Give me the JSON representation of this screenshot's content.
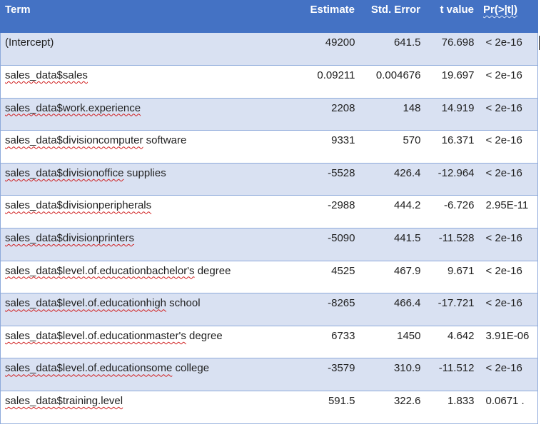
{
  "header": {
    "term": "Term",
    "estimate": "Estimate",
    "std_error": "Std. Error",
    "t_value": "t value",
    "p_value": "Pr(>|t|)"
  },
  "rows": [
    {
      "prefix": "(Intercept)",
      "rest": "",
      "estimate": "49200",
      "std_error": "641.5",
      "t_value": "76.698",
      "p_value": "< 2e-16"
    },
    {
      "prefix": "sales_data$sales",
      "rest": "",
      "estimate": "0.09211",
      "std_error": "0.004676",
      "t_value": "19.697",
      "p_value": "< 2e-16"
    },
    {
      "prefix": "sales_data$work.experience",
      "rest": "",
      "estimate": "2208",
      "std_error": "148",
      "t_value": "14.919",
      "p_value": "< 2e-16"
    },
    {
      "prefix": "sales_data$divisioncomputer",
      "rest": " software",
      "estimate": "9331",
      "std_error": "570",
      "t_value": "16.371",
      "p_value": "< 2e-16"
    },
    {
      "prefix": "sales_data$divisionoffice",
      "rest": " supplies",
      "estimate": "-5528",
      "std_error": "426.4",
      "t_value": "-12.964",
      "p_value": "< 2e-16"
    },
    {
      "prefix": "sales_data$divisionperipherals",
      "rest": "",
      "estimate": "-2988",
      "std_error": "444.2",
      "t_value": "-6.726",
      "p_value": "2.95E-11"
    },
    {
      "prefix": "sales_data$divisionprinters",
      "rest": "",
      "estimate": "-5090",
      "std_error": "441.5",
      "t_value": "-11.528",
      "p_value": "< 2e-16"
    },
    {
      "prefix": "sales_data$level.of.educationbachelor's",
      "rest": " degree",
      "estimate": "4525",
      "std_error": "467.9",
      "t_value": "9.671",
      "p_value": "< 2e-16"
    },
    {
      "prefix": "sales_data$level.of.educationhigh",
      "rest": " school",
      "estimate": "-8265",
      "std_error": "466.4",
      "t_value": "-17.721",
      "p_value": "< 2e-16"
    },
    {
      "prefix": "sales_data$level.of.educationmaster's",
      "rest": " degree",
      "estimate": "6733",
      "std_error": "1450",
      "t_value": "4.642",
      "p_value": "3.91E-06"
    },
    {
      "prefix": "sales_data$level.of.educationsome",
      "rest": " college",
      "estimate": "-3579",
      "std_error": "310.9",
      "t_value": "-11.512",
      "p_value": "< 2e-16"
    },
    {
      "prefix": "sales_data$training.level",
      "rest": "",
      "estimate": "591.5",
      "std_error": "322.6",
      "t_value": "1.833",
      "p_value": "0.0671 ."
    }
  ],
  "colors": {
    "header_bg": "#4472c4",
    "band_bg": "#d9e1f2",
    "border": "#8eaadb",
    "spell_underline": "#d12020"
  }
}
